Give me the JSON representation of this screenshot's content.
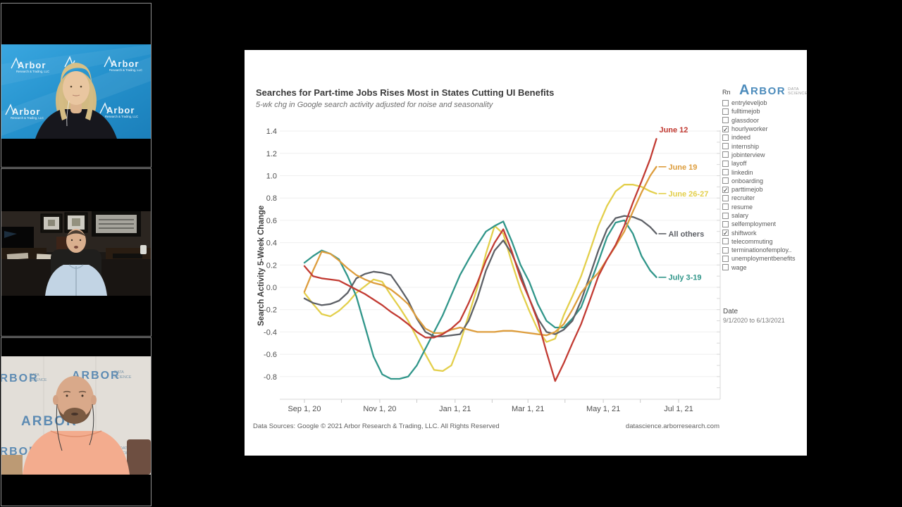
{
  "video_call": {
    "tiles": [
      {
        "id": "speaker-1",
        "banner_brand": "Arbor",
        "banner_sub": "Research & Trading, LLC"
      },
      {
        "id": "speaker-2"
      },
      {
        "id": "speaker-3",
        "banner_brand": "ARBOR",
        "banner_sub1": "DATA",
        "banner_sub2": "SCIENCE"
      }
    ]
  },
  "dashboard": {
    "footer_left": "Data Sources: Google © 2021 Arbor Research & Trading, LLC. All Rights Reserved",
    "footer_right": "datascience.arborresearch.com",
    "logo": {
      "brand_first": "A",
      "brand_rest": "RBOR",
      "sub_top": "DATA",
      "sub_bottom": "SCIENCE"
    },
    "filter_panel": {
      "header": "Rn",
      "items": [
        {
          "label": "entryleveljob",
          "checked": false
        },
        {
          "label": "fulltimejob",
          "checked": false
        },
        {
          "label": "glassdoor",
          "checked": false
        },
        {
          "label": "hourlyworker",
          "checked": true
        },
        {
          "label": "indeed",
          "checked": false
        },
        {
          "label": "internship",
          "checked": false
        },
        {
          "label": "jobinterview",
          "checked": false
        },
        {
          "label": "layoff",
          "checked": false
        },
        {
          "label": "linkedin",
          "checked": false
        },
        {
          "label": "onboarding",
          "checked": false
        },
        {
          "label": "parttimejob",
          "checked": true
        },
        {
          "label": "recruiter",
          "checked": false
        },
        {
          "label": "resume",
          "checked": false
        },
        {
          "label": "salary",
          "checked": false
        },
        {
          "label": "selfemployment",
          "checked": false
        },
        {
          "label": "shiftwork",
          "checked": true
        },
        {
          "label": "telecommuting",
          "checked": false
        },
        {
          "label": "terminationofemploy..",
          "checked": false
        },
        {
          "label": "unemploymentbenefits",
          "checked": false
        },
        {
          "label": "wage",
          "checked": false
        }
      ]
    },
    "date_filter": {
      "label": "Date",
      "value": "9/1/2020 to 6/13/2021"
    }
  },
  "chart_data": {
    "type": "line",
    "title": "Searches for Part-time Jobs Rises Most in States Cutting UI Benefits",
    "subtitle": "5-wk chg in Google search activity adjusted for noise and seasonality",
    "ylabel": "Search Activity 5-Week Change",
    "ylim": [
      -0.95,
      1.45
    ],
    "grid": "horizontal",
    "legend_position": "line-end-labels",
    "yticks": [
      1.4,
      1.2,
      1.0,
      0.8,
      0.6,
      0.4,
      0.2,
      0.0,
      -0.2,
      -0.4,
      -0.6,
      -0.8
    ],
    "xtick_labels": [
      "Sep 1, 20",
      "Nov 1, 20",
      "Jan 1, 21",
      "Mar 1, 21",
      "May 1, 21",
      "Jul 1, 21"
    ],
    "xtick_days": [
      0,
      61,
      122,
      181,
      242,
      303
    ],
    "xticks_minor_days": [
      0,
      30,
      61,
      91,
      122,
      152,
      181,
      211,
      242,
      272,
      303
    ],
    "x_start_date": "9/1/2020",
    "x_end_date": "6/13/2021",
    "x_days": [
      0,
      7,
      14,
      21,
      28,
      35,
      42,
      49,
      56,
      63,
      70,
      77,
      84,
      91,
      98,
      105,
      112,
      119,
      126,
      133,
      140,
      147,
      154,
      161,
      168,
      175,
      182,
      189,
      196,
      203,
      210,
      217,
      224,
      231,
      238,
      245,
      252,
      259,
      266,
      273,
      280,
      285
    ],
    "series": [
      {
        "name": "June 12",
        "color": "#c23b33",
        "z": 5,
        "leader": false,
        "values": [
          0.19,
          0.1,
          0.08,
          0.07,
          0.06,
          0.02,
          -0.02,
          -0.06,
          -0.11,
          -0.16,
          -0.22,
          -0.27,
          -0.33,
          -0.4,
          -0.45,
          -0.45,
          -0.42,
          -0.37,
          -0.3,
          -0.14,
          0.04,
          0.24,
          0.4,
          0.52,
          0.32,
          0.08,
          -0.1,
          -0.3,
          -0.58,
          -0.84,
          -0.68,
          -0.5,
          -0.33,
          -0.12,
          0.1,
          0.25,
          0.38,
          0.55,
          0.76,
          0.95,
          1.15,
          1.33
        ]
      },
      {
        "name": "June 19",
        "color": "#dd9d3d",
        "z": 4,
        "leader": true,
        "values": [
          -0.04,
          0.15,
          0.32,
          0.3,
          0.24,
          0.17,
          0.11,
          0.07,
          0.04,
          0.02,
          -0.02,
          -0.08,
          -0.15,
          -0.27,
          -0.37,
          -0.41,
          -0.41,
          -0.38,
          -0.36,
          -0.38,
          -0.4,
          -0.4,
          -0.4,
          -0.39,
          -0.39,
          -0.4,
          -0.41,
          -0.42,
          -0.43,
          -0.4,
          -0.33,
          -0.2,
          -0.05,
          0.05,
          0.13,
          0.25,
          0.37,
          0.5,
          0.68,
          0.85,
          1.0,
          1.08
        ]
      },
      {
        "name": "June 26-27",
        "color": "#e3cf4b",
        "z": 1,
        "leader": true,
        "values": [
          -0.05,
          -0.15,
          -0.24,
          -0.26,
          -0.21,
          -0.14,
          -0.05,
          0.01,
          0.07,
          0.05,
          -0.07,
          -0.18,
          -0.3,
          -0.45,
          -0.6,
          -0.74,
          -0.75,
          -0.7,
          -0.5,
          -0.25,
          0.0,
          0.3,
          0.55,
          0.48,
          0.22,
          -0.02,
          -0.21,
          -0.38,
          -0.49,
          -0.46,
          -0.25,
          -0.08,
          0.1,
          0.32,
          0.55,
          0.73,
          0.86,
          0.92,
          0.92,
          0.9,
          0.86,
          0.84
        ]
      },
      {
        "name": "All others",
        "color": "#5d6066",
        "z": 3,
        "leader": true,
        "values": [
          -0.1,
          -0.14,
          -0.16,
          -0.15,
          -0.12,
          -0.05,
          0.08,
          0.12,
          0.14,
          0.13,
          0.11,
          0.0,
          -0.12,
          -0.28,
          -0.4,
          -0.44,
          -0.44,
          -0.43,
          -0.42,
          -0.3,
          -0.1,
          0.15,
          0.33,
          0.42,
          0.3,
          0.12,
          -0.1,
          -0.28,
          -0.4,
          -0.42,
          -0.38,
          -0.3,
          -0.12,
          0.1,
          0.33,
          0.52,
          0.62,
          0.64,
          0.63,
          0.6,
          0.54,
          0.48
        ]
      },
      {
        "name": "July 3-19",
        "color": "#31968a",
        "z": 2,
        "leader": true,
        "values": [
          0.22,
          0.28,
          0.33,
          0.3,
          0.25,
          0.1,
          -0.08,
          -0.35,
          -0.62,
          -0.78,
          -0.82,
          -0.82,
          -0.8,
          -0.7,
          -0.55,
          -0.4,
          -0.25,
          -0.07,
          0.11,
          0.25,
          0.38,
          0.5,
          0.55,
          0.59,
          0.41,
          0.2,
          0.05,
          -0.15,
          -0.3,
          -0.36,
          -0.36,
          -0.28,
          -0.18,
          0.02,
          0.23,
          0.45,
          0.58,
          0.6,
          0.48,
          0.28,
          0.15,
          0.09
        ]
      }
    ]
  }
}
